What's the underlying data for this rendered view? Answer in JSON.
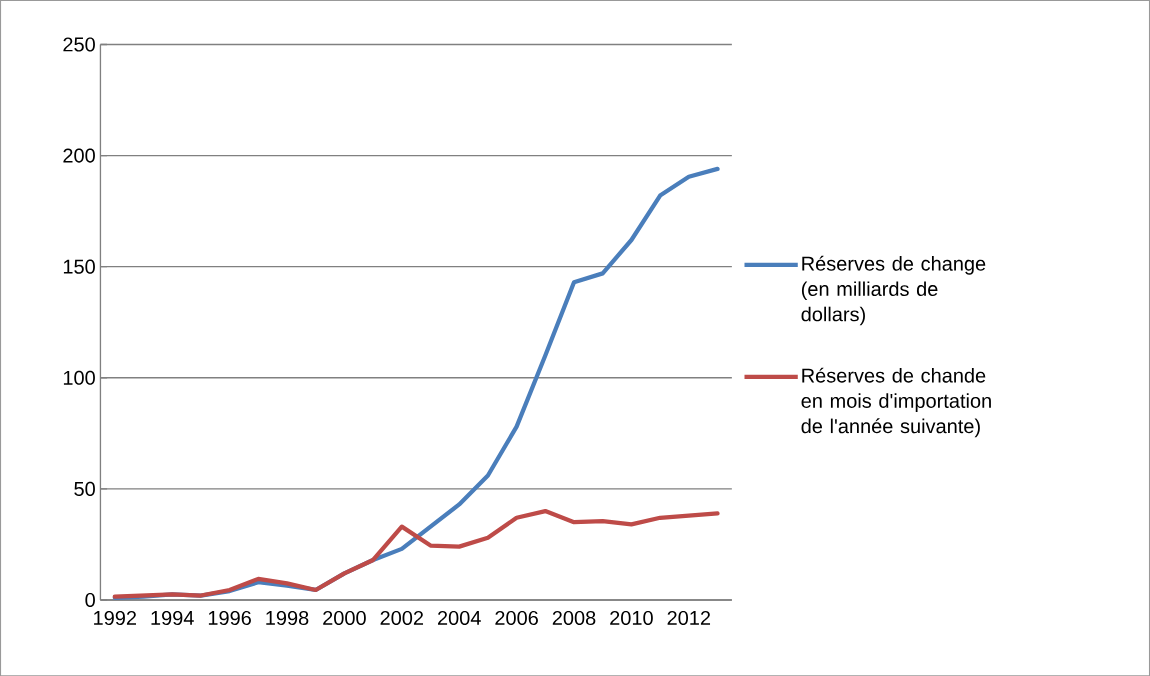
{
  "chart_data": {
    "type": "line",
    "categories": [
      "1992",
      null,
      "1994",
      null,
      "1996",
      null,
      "1998",
      null,
      "2000",
      null,
      "2002",
      null,
      "2004",
      null,
      "2006",
      null,
      "2008",
      null,
      "2010",
      null,
      "2012",
      null
    ],
    "series": [
      {
        "name": "Réserves de change (en milliards de dollars)",
        "color": "#4a7ebb",
        "values": [
          1,
          1.5,
          2.5,
          2,
          4,
          8,
          6.5,
          4.5,
          12,
          18,
          23,
          33,
          43,
          56,
          78,
          110,
          143,
          147,
          162,
          182,
          190.5,
          194
        ]
      },
      {
        "name": "Réserves de chande en mois d'importation de l'année suivante)",
        "color": "#be4b48",
        "values": [
          1.5,
          2,
          2.5,
          2,
          4.5,
          9.5,
          7.5,
          4.5,
          12,
          18,
          33,
          24.5,
          24,
          28,
          37,
          40,
          35,
          35.5,
          34,
          37,
          38,
          39
        ]
      }
    ],
    "ylim": [
      0,
      250
    ],
    "yticks": [
      0,
      50,
      100,
      150,
      200,
      250
    ],
    "grid": "y",
    "legend": "right",
    "marker": "none",
    "line_style": "solid"
  }
}
